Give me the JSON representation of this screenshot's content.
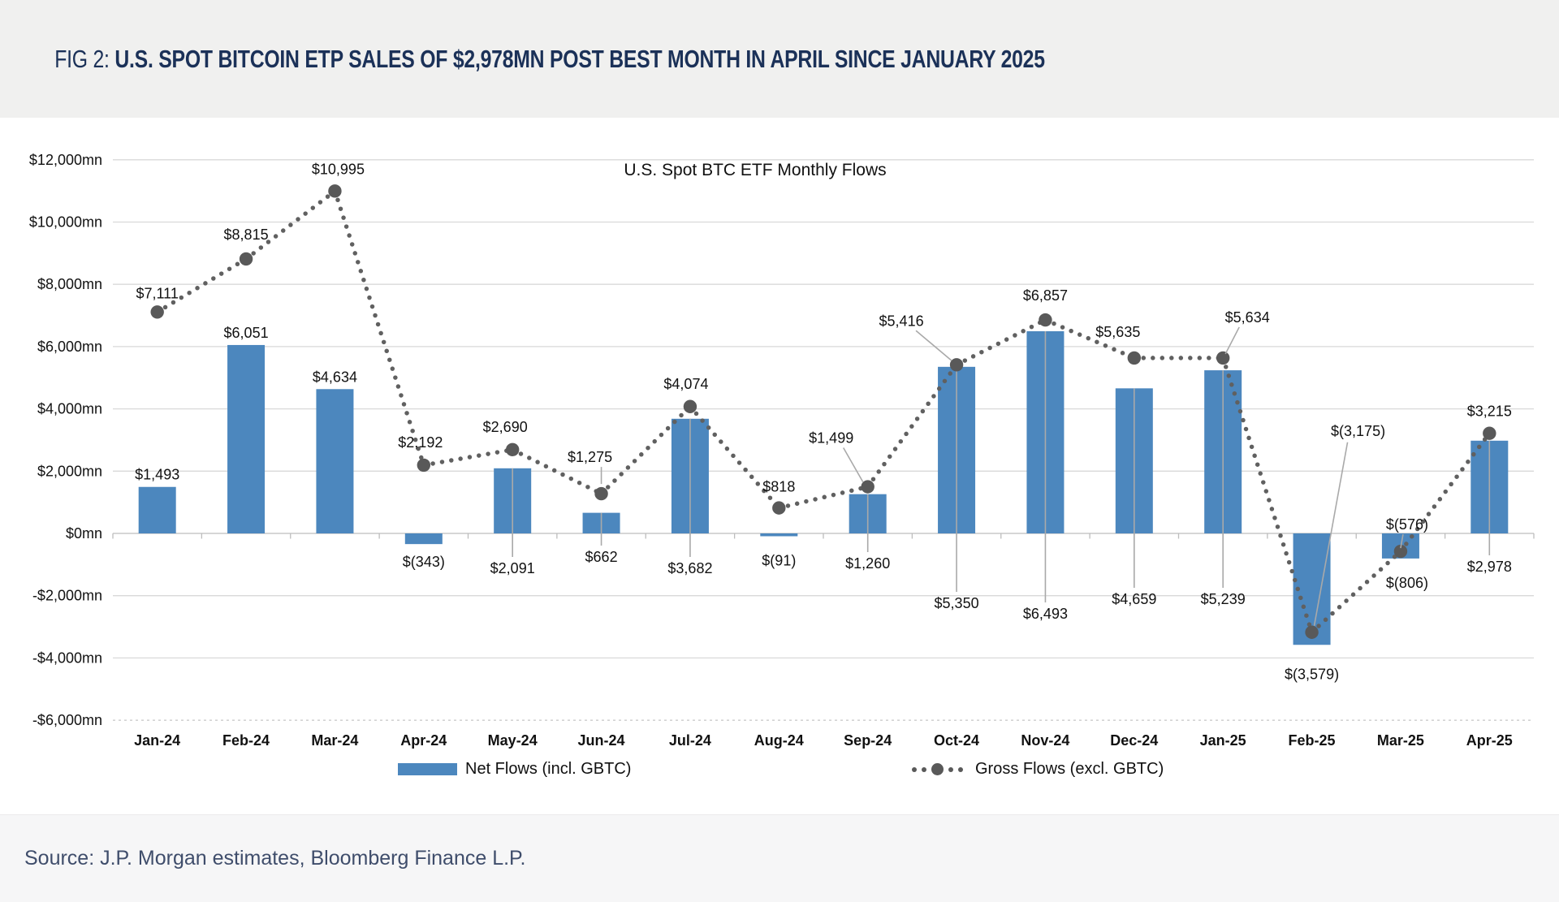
{
  "header": {
    "fig_label": "FIG 2:",
    "title": "U.S. SPOT BITCOIN ETP SALES OF $2,978MN POST BEST MONTH IN APRIL SINCE JANUARY 2025"
  },
  "chart": {
    "title": "U.S. Spot BTC ETF Monthly Flows",
    "legend": {
      "net": "Net Flows (incl. GBTC)",
      "gross": "Gross Flows (excl. GBTC)"
    }
  },
  "chart_data": {
    "type": "bar+line",
    "title": "U.S. Spot BTC ETF Monthly Flows",
    "categories": [
      "Jan-24",
      "Feb-24",
      "Mar-24",
      "Apr-24",
      "May-24",
      "Jun-24",
      "Jul-24",
      "Aug-24",
      "Sep-24",
      "Oct-24",
      "Nov-24",
      "Dec-24",
      "Jan-25",
      "Feb-25",
      "Mar-25",
      "Apr-25"
    ],
    "series": [
      {
        "name": "Net Flows (incl. GBTC)",
        "type": "bar",
        "color": "#4c87be",
        "values": [
          1493,
          6051,
          4634,
          -343,
          2091,
          662,
          3682,
          -91,
          1260,
          5350,
          6493,
          4659,
          5239,
          -3579,
          -806,
          2978
        ],
        "labels": [
          "$1,493",
          "$6,051",
          "$4,634",
          "$(343)",
          "$2,091",
          "$662",
          "$3,682",
          "$(91)",
          "$1,260",
          "$5,350",
          "$6,493",
          "$4,659",
          "$5,239",
          "$(3,579)",
          "$(806)",
          "$2,978"
        ]
      },
      {
        "name": "Gross Flows (excl. GBTC)",
        "type": "dotted_line",
        "color": "#595959",
        "values": [
          7111,
          8815,
          10995,
          2192,
          2690,
          1275,
          4074,
          818,
          1499,
          5416,
          6857,
          5635,
          5634,
          -3175,
          -576,
          3215
        ],
        "labels": [
          "$7,111",
          "$8,815",
          "$10,995",
          "$2,192",
          "$2,690",
          "$1,275",
          "$4,074",
          "$818",
          "$1,499",
          "$5,416",
          "$6,857",
          "$5,635",
          "$5,634",
          "$(3,175)",
          "$(576)",
          "$3,215"
        ]
      }
    ],
    "y_axis": {
      "min": -6000,
      "max": 12000,
      "step": 2000,
      "tick_labels": [
        "$12,000mn",
        "$10,000mn",
        "$8,000mn",
        "$6,000mn",
        "$4,000mn",
        "$2,000mn",
        "$0mn",
        "-$2,000mn",
        "-$4,000mn",
        "-$6,000mn"
      ]
    },
    "grid": true,
    "legend_position": "bottom"
  },
  "footer": {
    "source": "Source: J.P. Morgan estimates, Bloomberg Finance L.P."
  }
}
